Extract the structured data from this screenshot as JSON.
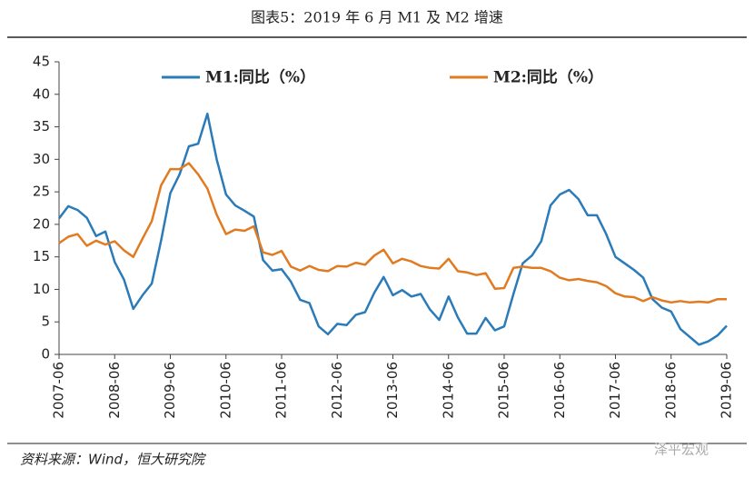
{
  "chart_data": {
    "type": "line",
    "title": "图表5：2019 年 6 月 M1 及 M2 增速",
    "source": "资料来源：Wind，恒大研究院",
    "watermark": "泽平宏观",
    "categories": [
      "2007-06",
      null,
      null,
      null,
      null,
      null,
      "2008-06",
      null,
      null,
      null,
      null,
      null,
      "2009-06",
      null,
      null,
      null,
      null,
      null,
      "2010-06",
      null,
      null,
      null,
      null,
      null,
      "2011-06",
      null,
      null,
      null,
      null,
      null,
      "2012-06",
      null,
      null,
      null,
      null,
      null,
      "2013-06",
      null,
      null,
      null,
      null,
      null,
      "2014-06",
      null,
      null,
      null,
      null,
      null,
      "2015-06",
      null,
      null,
      null,
      null,
      null,
      "2016-06",
      null,
      null,
      null,
      null,
      null,
      "2017-06",
      null,
      null,
      null,
      null,
      null,
      "2018-06",
      null,
      null,
      null,
      null,
      null,
      "2019-06"
    ],
    "series": [
      {
        "name": "M1:同比（%）",
        "color": "#2b7bb9",
        "values": [
          20.9,
          22.8,
          22.2,
          21.0,
          18.2,
          18.9,
          14.2,
          11.5,
          7.0,
          9.1,
          10.9,
          17.5,
          24.8,
          27.7,
          32.0,
          32.4,
          37.0,
          30.0,
          24.6,
          22.9,
          22.1,
          21.2,
          14.5,
          12.9,
          13.1,
          11.2,
          8.4,
          7.9,
          4.3,
          3.1,
          4.7,
          4.5,
          6.1,
          6.5,
          9.5,
          11.9,
          9.1,
          9.9,
          8.9,
          9.3,
          6.9,
          5.3,
          8.9,
          5.7,
          3.2,
          3.2,
          5.6,
          3.7,
          4.3,
          9.3,
          14.0,
          15.2,
          17.4,
          22.9,
          24.6,
          25.3,
          23.9,
          21.4,
          21.4,
          18.5,
          15.0,
          14.0,
          13.0,
          11.8,
          8.5,
          7.2,
          6.6,
          3.9,
          2.7,
          1.5,
          2.0,
          2.9,
          4.4
        ]
      },
      {
        "name": "M2:同比（%）",
        "color": "#e07b22",
        "values": [
          17.1,
          18.1,
          18.5,
          16.7,
          17.5,
          16.9,
          17.4,
          16.0,
          15.0,
          17.8,
          20.5,
          26.0,
          28.5,
          28.5,
          29.4,
          27.7,
          25.5,
          21.5,
          18.5,
          19.2,
          19.0,
          19.7,
          15.7,
          15.3,
          15.9,
          13.5,
          12.9,
          13.6,
          13.0,
          12.8,
          13.6,
          13.5,
          14.1,
          13.8,
          15.2,
          16.1,
          14.0,
          14.7,
          14.3,
          13.6,
          13.3,
          13.2,
          14.7,
          12.8,
          12.6,
          12.2,
          12.5,
          10.1,
          10.2,
          13.3,
          13.5,
          13.3,
          13.3,
          12.8,
          11.8,
          11.4,
          11.6,
          11.3,
          11.1,
          10.5,
          9.4,
          8.9,
          8.8,
          8.2,
          8.8,
          8.3,
          8.0,
          8.2,
          8.0,
          8.1,
          8.0,
          8.5,
          8.5
        ]
      }
    ],
    "ylim": [
      0,
      45
    ],
    "yticks": [
      0,
      5,
      10,
      15,
      20,
      25,
      30,
      35,
      40,
      45
    ],
    "grid": false
  }
}
